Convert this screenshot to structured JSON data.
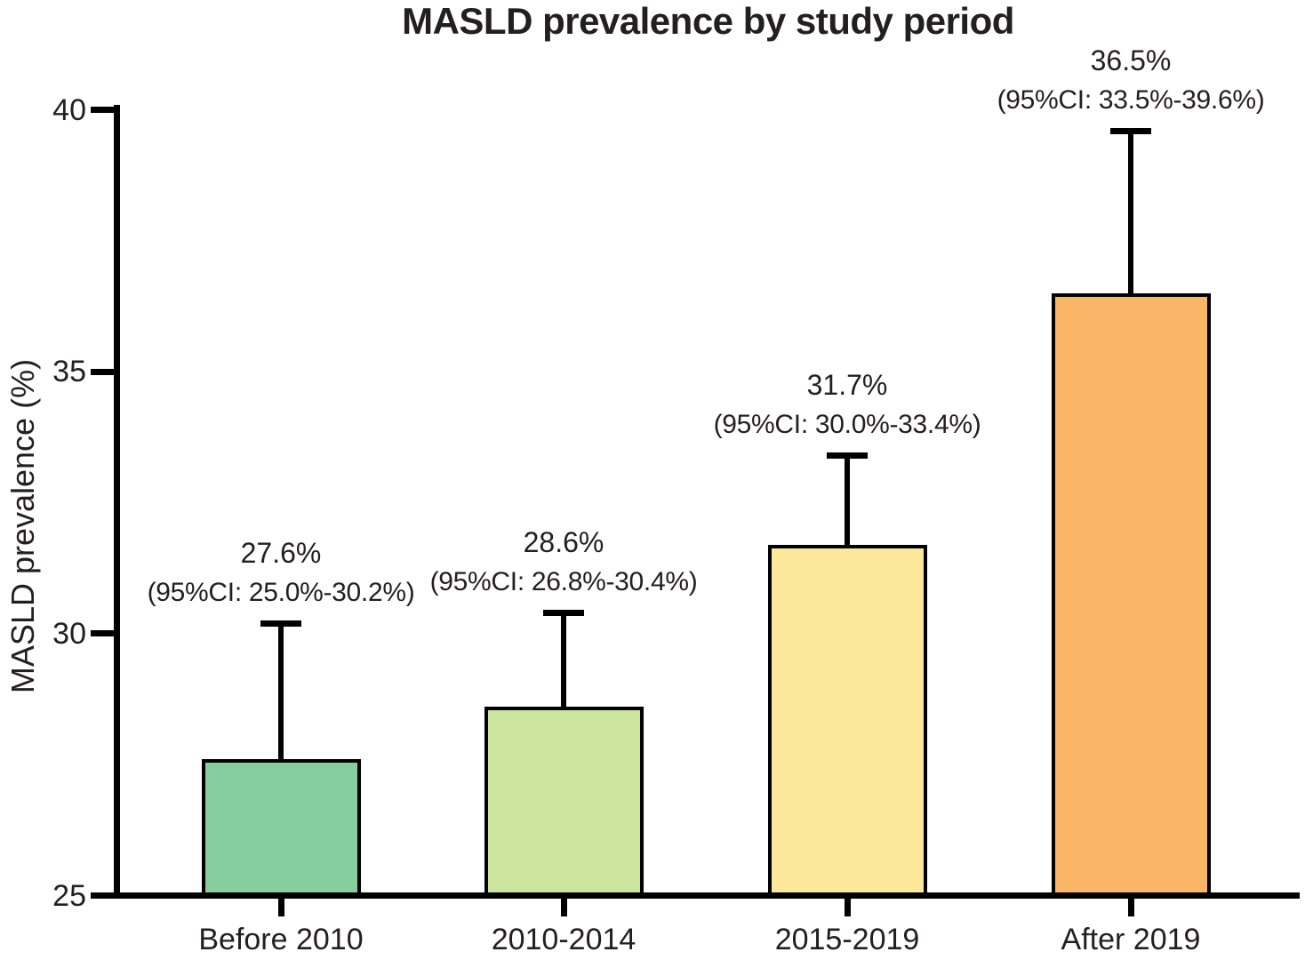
{
  "chart_data": {
    "type": "bar",
    "title": "MASLD prevalence by study period",
    "xlabel": "",
    "ylabel": "MASLD prevalence (%)",
    "ylim": [
      25,
      40
    ],
    "yticks": [
      "25",
      "30",
      "35",
      "40"
    ],
    "ytick_values": [
      25,
      30,
      35,
      40
    ],
    "grid": false,
    "legend_position": "none",
    "categories": [
      "Before 2010",
      "2010-2014",
      "2015-2019",
      "After 2019"
    ],
    "values": [
      27.6,
      28.6,
      31.7,
      36.5
    ],
    "ci_lower": [
      25.0,
      26.8,
      30.0,
      33.5
    ],
    "ci_upper": [
      30.2,
      30.4,
      33.4,
      39.6
    ],
    "value_labels": [
      "27.6%",
      "28.6%",
      "31.7%",
      "36.5%"
    ],
    "ci_labels": [
      "(95%CI: 25.0%-30.2%)",
      "(95%CI: 26.8%-30.4%)",
      "(95%CI: 30.0%-33.4%)",
      "(95%CI: 33.5%-39.6%)"
    ],
    "bar_colors": [
      "#87CE9F",
      "#CBE59E",
      "#FDE79A",
      "#FBB566"
    ],
    "axis_color": "#000000",
    "text_color": "#231F20",
    "error_bar_style": "upper-only-with-cap"
  }
}
